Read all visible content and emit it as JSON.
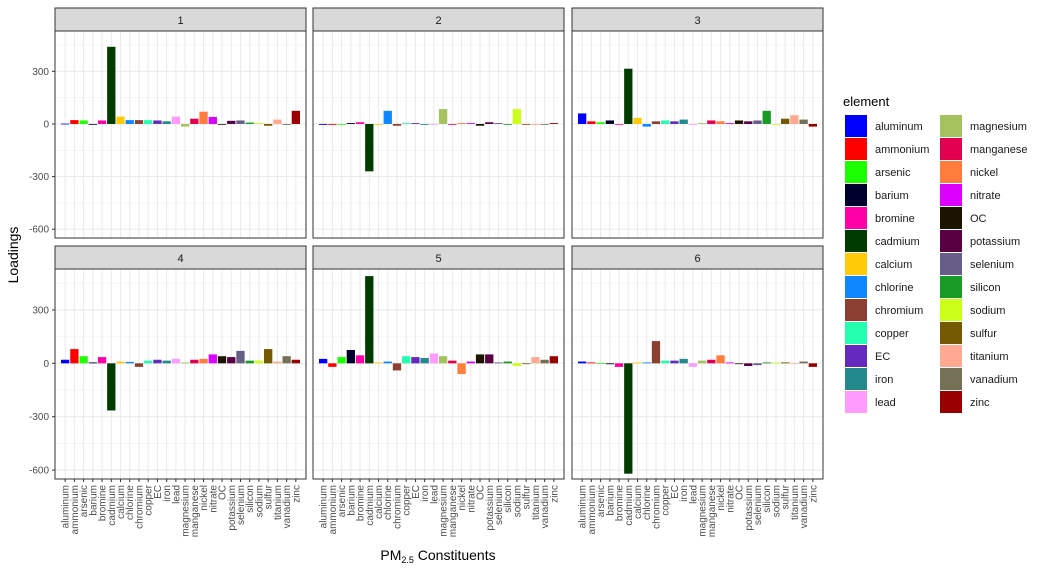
{
  "chart_data": {
    "type": "bar",
    "facet_type": "wrap",
    "categories": [
      "aluminum",
      "ammonium",
      "arsenic",
      "barium",
      "bromine",
      "cadmium",
      "calcium",
      "chlorine",
      "chromium",
      "copper",
      "EC",
      "iron",
      "lead",
      "magnesium",
      "manganese",
      "nickel",
      "nitrate",
      "OC",
      "potassium",
      "selenium",
      "silicon",
      "sodium",
      "sulfur",
      "titanium",
      "vanadium",
      "zinc"
    ],
    "colors": {
      "aluminum": "#0000FF",
      "ammonium": "#FF0000",
      "arsenic": "#1CFF00",
      "barium": "#00002E",
      "bromine": "#FF00A8",
      "cadmium": "#003C00",
      "calcium": "#FFCA08",
      "chlorine": "#0F87FF",
      "chromium": "#8C4032",
      "copper": "#24FFAF",
      "EC": "#6529C0",
      "iron": "#24898D",
      "lead": "#FF9AFF",
      "magnesium": "#A5C25E",
      "manganese": "#E4004E",
      "nickel": "#FF7C3D",
      "nitrate": "#DD00FF",
      "OC": "#1D1400",
      "potassium": "#580041",
      "selenium": "#665D89",
      "silicon": "#199B28",
      "sodium": "#CBFF17",
      "sulfur": "#765903",
      "titanium": "#FFA993",
      "vanadium": "#747157",
      "zinc": "#9B0000"
    },
    "facets": [
      {
        "label": "1",
        "values": [
          2,
          22,
          20,
          -4,
          20,
          440,
          42,
          22,
          22,
          22,
          20,
          15,
          42,
          -15,
          30,
          70,
          40,
          0,
          18,
          20,
          8,
          5,
          -10,
          25,
          -5,
          75
        ]
      },
      {
        "label": "2",
        "values": [
          -5,
          -5,
          0,
          5,
          10,
          -270,
          -5,
          75,
          -10,
          5,
          5,
          -5,
          0,
          85,
          0,
          5,
          5,
          -10,
          10,
          5,
          0,
          85,
          0,
          -5,
          0,
          5
        ]
      },
      {
        "label": "3",
        "values": [
          60,
          15,
          10,
          20,
          0,
          315,
          35,
          -15,
          15,
          20,
          15,
          25,
          0,
          5,
          20,
          15,
          5,
          20,
          15,
          20,
          75,
          0,
          30,
          50,
          25,
          -15
        ]
      },
      {
        "label": "4",
        "values": [
          20,
          80,
          40,
          5,
          35,
          -265,
          10,
          8,
          -20,
          15,
          20,
          15,
          25,
          5,
          20,
          25,
          50,
          40,
          35,
          70,
          15,
          15,
          80,
          10,
          40,
          20
        ]
      },
      {
        "label": "5",
        "values": [
          25,
          -20,
          35,
          75,
          45,
          490,
          5,
          10,
          -40,
          40,
          35,
          30,
          55,
          40,
          15,
          -60,
          10,
          50,
          50,
          5,
          10,
          -15,
          0,
          35,
          20,
          40
        ]
      },
      {
        "label": "6",
        "values": [
          10,
          5,
          2,
          -5,
          -20,
          -620,
          5,
          5,
          125,
          15,
          15,
          25,
          -20,
          15,
          20,
          45,
          5,
          0,
          -15,
          -10,
          5,
          5,
          5,
          0,
          10,
          -20
        ]
      }
    ],
    "xlabel": "PM2.5 Constituents",
    "ylabel": "Loadings",
    "ylim": [
      -650,
      530
    ],
    "yticks": [
      -600,
      -300,
      0,
      300
    ],
    "legend": {
      "title": "element",
      "position": "right",
      "columns": 2
    },
    "grid": true
  },
  "axis": {
    "xlabel_main": "PM",
    "xlabel_sub": "2.5",
    "xlabel_rest": " Constituents",
    "ylabel": "Loadings"
  },
  "legend": {
    "title": "element"
  }
}
